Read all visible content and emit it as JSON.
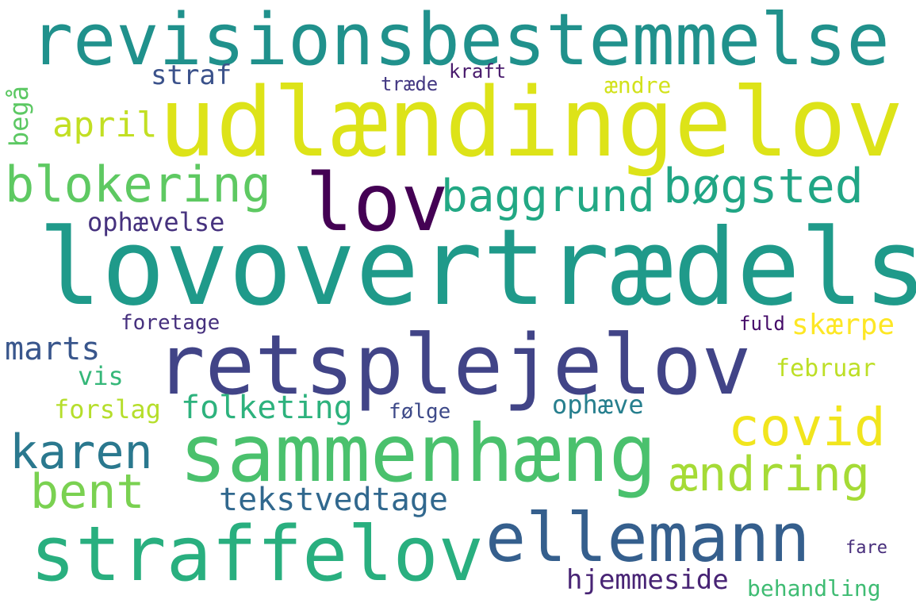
{
  "words": {
    "revisionsbestemmelse": {
      "text": "revisionsbestemmelse",
      "color": "#20918c"
    },
    "udlaendingelov": {
      "text": "udlændingelov",
      "color": "#dde318"
    },
    "lovovertraedelse": {
      "text": "lovovertrædelse",
      "color": "#1f9a8a"
    },
    "retsplejelov": {
      "text": "retsplejelov",
      "color": "#414487"
    },
    "sammenhaeng": {
      "text": "sammenhæng",
      "color": "#4ac16d"
    },
    "straffelov": {
      "text": "straffelov",
      "color": "#29af7f"
    },
    "ellemann": {
      "text": "ellemann",
      "color": "#355f8d"
    },
    "lov": {
      "text": "lov",
      "color": "#440154"
    },
    "blokering": {
      "text": "blokering",
      "color": "#5ec962"
    },
    "baggrund": {
      "text": "baggrund",
      "color": "#22a884"
    },
    "boegsted": {
      "text": "bøgsted",
      "color": "#21a685"
    },
    "covid": {
      "text": "covid",
      "color": "#f1e51d"
    },
    "karen": {
      "text": "karen",
      "color": "#2a788e"
    },
    "bent": {
      "text": "bent",
      "color": "#7ad151"
    },
    "aendring": {
      "text": "ændring",
      "color": "#a5db36"
    },
    "tekstvedtage": {
      "text": "tekstvedtage",
      "color": "#31688e"
    },
    "hjemmeside": {
      "text": "hjemmeside",
      "color": "#482475"
    },
    "behandling": {
      "text": "behandling",
      "color": "#3fbc73"
    },
    "fare": {
      "text": "fare",
      "color": "#472d7b"
    },
    "april": {
      "text": "april",
      "color": "#c2df23"
    },
    "straf": {
      "text": "straf",
      "color": "#3b528b"
    },
    "kraft": {
      "text": "kraft",
      "color": "#481a6c"
    },
    "traede": {
      "text": "træde",
      "color": "#443983"
    },
    "aendre": {
      "text": "ændre",
      "color": "#d2e21b"
    },
    "begaa": {
      "text": "begå",
      "color": "#5cc863"
    },
    "ophaevelse": {
      "text": "ophævelse",
      "color": "#46327e"
    },
    "marts": {
      "text": "marts",
      "color": "#39568c"
    },
    "foretage": {
      "text": "foretage",
      "color": "#46307e"
    },
    "vis": {
      "text": "vis",
      "color": "#35b779"
    },
    "forslag": {
      "text": "forslag",
      "color": "#b5de2b"
    },
    "folketing": {
      "text": "folketing",
      "color": "#2db27d"
    },
    "foelge": {
      "text": "følge",
      "color": "#3e4a89"
    },
    "ophaeve": {
      "text": "ophæve",
      "color": "#277f8e"
    },
    "fuld": {
      "text": "fuld",
      "color": "#440a68"
    },
    "skaerpe": {
      "text": "skærpe",
      "color": "#fde725"
    },
    "februar": {
      "text": "februar",
      "color": "#bddf26"
    }
  }
}
